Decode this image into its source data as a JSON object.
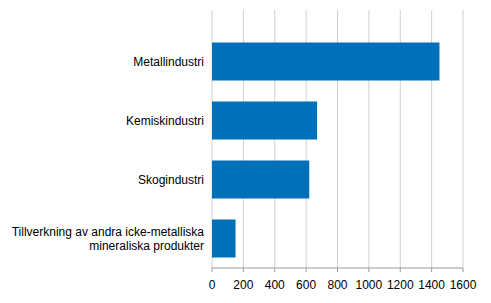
{
  "chart_data": {
    "type": "bar",
    "orientation": "horizontal",
    "categories": [
      "Metallindustri",
      "Kemiskindustri",
      "Skogindustri",
      "Tillverkning av andra icke-metalliska mineraliska produkter"
    ],
    "values": [
      1450,
      670,
      620,
      150
    ],
    "color": "#0070b8",
    "xlim": [
      0,
      1600
    ],
    "xticks": [
      0,
      200,
      400,
      600,
      800,
      1000,
      1200,
      1400,
      1600
    ],
    "grid": true
  }
}
